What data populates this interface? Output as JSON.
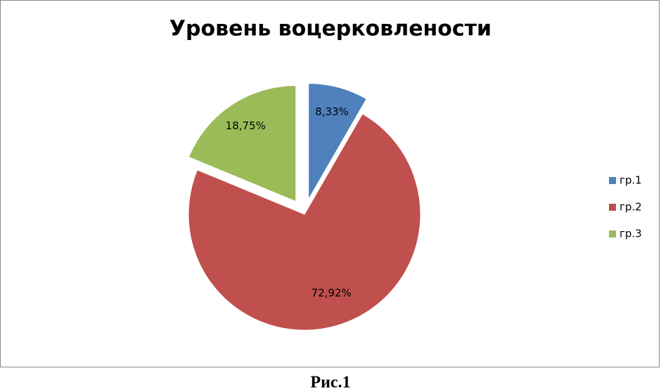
{
  "chart_data": {
    "type": "pie",
    "title": "Уровень воцерковлености",
    "categories": [
      "гр.1",
      "гр.2",
      "гр.3"
    ],
    "values": [
      8.33,
      72.92,
      18.75
    ],
    "value_labels": [
      "8,33%",
      "72,92%",
      "18,75%"
    ],
    "colors": [
      "#4f81bd",
      "#c0504d",
      "#9bbb59"
    ],
    "exploded": [
      true,
      false,
      true
    ],
    "legend": "right"
  },
  "caption": "Рис.1"
}
